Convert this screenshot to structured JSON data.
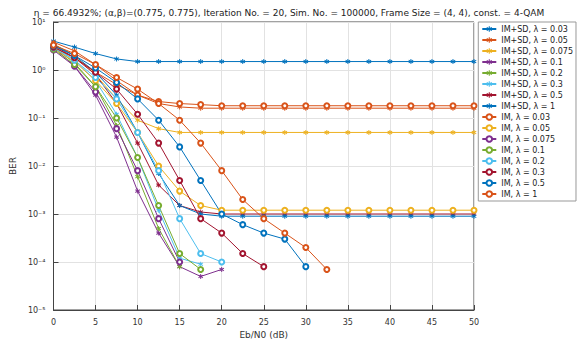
{
  "chart_data": {
    "type": "line",
    "title": "η = 66.4932%; (α,β)=(0.775, 0.775), Iteration No. = 20, Sim. No. = 100000, Frame Size = (4, 4), const. = 4-QAM",
    "x_label": "Eb/N0 (dB)",
    "y_label": "BER",
    "log": "y",
    "grid": true,
    "legend": "right",
    "xlim": [
      0,
      50
    ],
    "xticks": [
      0,
      5,
      10,
      15,
      20,
      25,
      30,
      35,
      40,
      45,
      50
    ],
    "ylim": [
      1e-05,
      10
    ],
    "yticks": [
      {
        "value": 1e-05,
        "label": "10⁻⁵"
      },
      {
        "value": 0.0001,
        "label": "10⁻⁴"
      },
      {
        "value": 0.001,
        "label": "10⁻³"
      },
      {
        "value": 0.01,
        "label": "10⁻²"
      },
      {
        "value": 0.1,
        "label": "10⁻¹"
      },
      {
        "value": 1,
        "label": "10⁰"
      },
      {
        "value": 10,
        "label": "10¹"
      }
    ],
    "x": [
      0,
      2.5,
      5,
      7.5,
      10,
      12.5,
      15,
      17.5,
      20,
      22.5,
      25,
      27.5,
      30,
      32.5,
      35,
      37.5,
      40,
      42.5,
      45,
      47.5,
      50
    ],
    "series": [
      {
        "name": "IM+SD, λ = 0.03",
        "color": "#0072BD",
        "marker": "star",
        "values": [
          4,
          3,
          2.2,
          1.7,
          1.5,
          1.5,
          1.5,
          1.5,
          1.5,
          1.5,
          1.5,
          1.5,
          1.5,
          1.5,
          1.5,
          1.5,
          1.5,
          1.5,
          1.5,
          1.5,
          1.5
        ]
      },
      {
        "name": "IM+SD, λ = 0.05",
        "color": "#D95319",
        "marker": "star",
        "values": [
          3.8,
          2.5,
          1.3,
          0.6,
          0.3,
          0.2,
          0.17,
          0.16,
          0.16,
          0.16,
          0.16,
          0.16,
          0.16,
          0.16,
          0.16,
          0.16,
          0.16,
          0.16,
          0.16,
          0.16,
          0.16
        ]
      },
      {
        "name": "IM+SD, λ = 0.075",
        "color": "#EDB120",
        "marker": "star",
        "values": [
          3.5,
          2,
          0.8,
          0.25,
          0.09,
          0.06,
          0.05,
          0.05,
          0.05,
          0.05,
          0.05,
          0.05,
          0.05,
          0.05,
          0.05,
          0.05,
          0.05,
          0.05,
          0.05,
          0.05,
          0.05
        ]
      },
      {
        "name": "IM+SD, λ = 0.1",
        "color": "#7E2F8E",
        "marker": "star",
        "values": [
          3,
          1.2,
          0.3,
          0.04,
          0.003,
          0.0004,
          8e-05,
          5e-05,
          7e-05,
          null,
          null,
          null,
          null,
          null,
          null,
          null,
          null,
          null,
          null,
          null,
          null
        ]
      },
      {
        "name": "IM+SD, λ = 0.2",
        "color": "#77AC30",
        "marker": "star",
        "values": [
          3,
          1.4,
          0.45,
          0.07,
          0.006,
          0.0005,
          8e-05,
          null,
          null,
          null,
          null,
          null,
          null,
          null,
          null,
          null,
          null,
          null,
          null,
          null,
          null
        ]
      },
      {
        "name": "IM+SD, λ = 0.3",
        "color": "#4DBEEE",
        "marker": "star",
        "values": [
          3.2,
          1.6,
          0.6,
          0.12,
          0.015,
          0.0012,
          0.00012,
          9e-05,
          null,
          null,
          null,
          null,
          null,
          null,
          null,
          null,
          null,
          null,
          null,
          null,
          null
        ]
      },
      {
        "name": "IM+SD, λ = 0.5",
        "color": "#A2142F",
        "marker": "star",
        "values": [
          3.3,
          1.8,
          0.8,
          0.2,
          0.03,
          0.004,
          0.0015,
          0.0011,
          0.001,
          0.001,
          0.001,
          0.001,
          0.001,
          0.001,
          0.001,
          0.001,
          0.001,
          0.001,
          0.001,
          0.001,
          0.001
        ]
      },
      {
        "name": "IM+SD, λ = 1",
        "color": "#0072BD",
        "marker": "star",
        "values": [
          3.4,
          2,
          0.9,
          0.3,
          0.05,
          0.007,
          0.0015,
          0.001,
          0.0009,
          0.0009,
          0.0009,
          0.0009,
          0.0009,
          0.0009,
          0.0009,
          0.0009,
          0.0009,
          0.0009,
          0.0009,
          0.0009,
          0.0009
        ]
      },
      {
        "name": "IM, λ = 0.03",
        "color": "#D95319",
        "marker": "circle",
        "values": [
          3,
          1.8,
          0.9,
          0.5,
          0.3,
          0.22,
          0.2,
          0.19,
          0.18,
          0.18,
          0.18,
          0.18,
          0.18,
          0.18,
          0.18,
          0.18,
          0.18,
          0.18,
          0.18,
          0.18,
          0.18
        ]
      },
      {
        "name": "IM, λ = 0.05",
        "color": "#EDB120",
        "marker": "circle",
        "values": [
          2.8,
          1.5,
          0.6,
          0.2,
          0.05,
          0.01,
          0.003,
          0.0015,
          0.0012,
          0.0012,
          0.0012,
          0.0012,
          0.0012,
          0.0012,
          0.0012,
          0.0012,
          0.0012,
          0.0012,
          0.0012,
          0.0012,
          0.0012
        ]
      },
      {
        "name": "IM, λ = 0.075",
        "color": "#7E2F8E",
        "marker": "circle",
        "values": [
          2.6,
          1.2,
          0.35,
          0.06,
          0.008,
          0.0008,
          0.0001,
          null,
          null,
          null,
          null,
          null,
          null,
          null,
          null,
          null,
          null,
          null,
          null,
          null,
          null
        ]
      },
      {
        "name": "IM, λ = 0.1",
        "color": "#77AC30",
        "marker": "circle",
        "values": [
          2.7,
          1.3,
          0.45,
          0.1,
          0.015,
          0.0015,
          0.00015,
          7e-05,
          null,
          null,
          null,
          null,
          null,
          null,
          null,
          null,
          null,
          null,
          null,
          null,
          null
        ]
      },
      {
        "name": "IM, λ = 0.2",
        "color": "#4DBEEE",
        "marker": "circle",
        "values": [
          2.9,
          1.6,
          0.7,
          0.25,
          0.05,
          0.008,
          0.0008,
          0.00015,
          0.0001,
          null,
          null,
          null,
          null,
          null,
          null,
          null,
          null,
          null,
          null,
          null,
          null
        ]
      },
      {
        "name": "IM, λ = 0.3",
        "color": "#A2142F",
        "marker": "circle",
        "values": [
          3,
          1.8,
          0.9,
          0.4,
          0.12,
          0.03,
          0.005,
          0.0008,
          0.0004,
          0.00015,
          8e-05,
          null,
          null,
          null,
          null,
          null,
          null,
          null,
          null,
          null,
          null
        ]
      },
      {
        "name": "IM, λ = 0.5",
        "color": "#0072BD",
        "marker": "circle",
        "values": [
          3.2,
          2,
          1.1,
          0.55,
          0.25,
          0.09,
          0.025,
          0.005,
          0.001,
          0.0006,
          0.0004,
          0.0003,
          8e-05,
          null,
          null,
          null,
          null,
          null,
          null,
          null,
          null
        ]
      },
      {
        "name": "IM, λ = 1",
        "color": "#D95319",
        "marker": "circle",
        "values": [
          3.3,
          2.2,
          1.3,
          0.7,
          0.4,
          0.2,
          0.09,
          0.03,
          0.008,
          0.002,
          0.0008,
          0.0004,
          0.0002,
          7e-05,
          null,
          null,
          null,
          null,
          null,
          null,
          null
        ]
      }
    ]
  }
}
